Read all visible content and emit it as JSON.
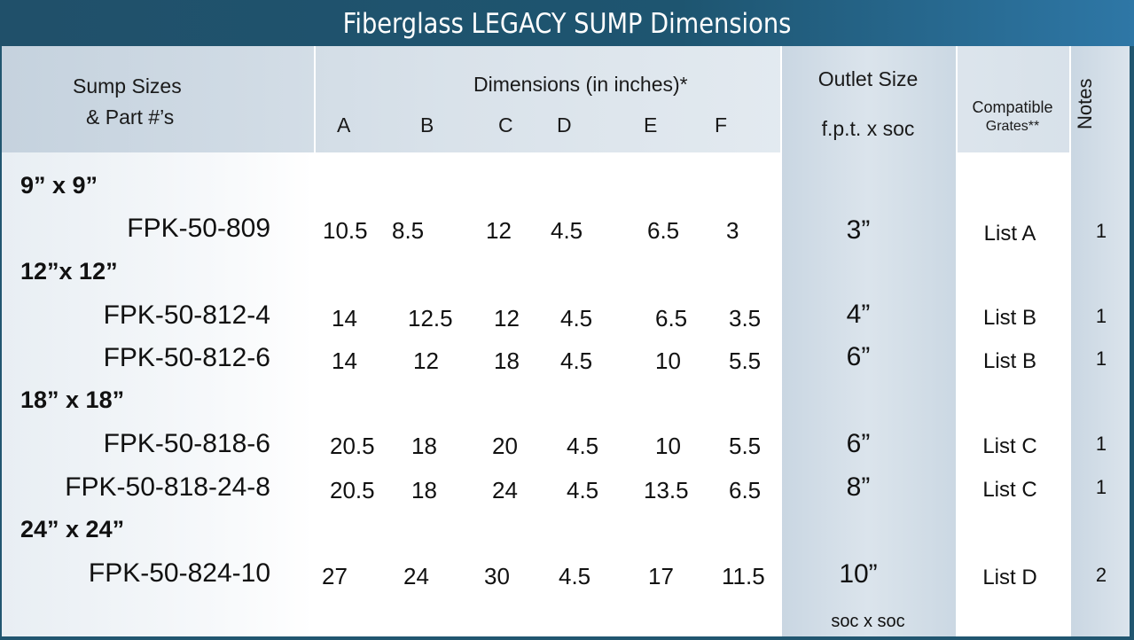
{
  "title": "Fiberglass LEGACY SUMP Dimensions",
  "headers": {
    "sizes_line1": "Sump Sizes",
    "sizes_line2": "& Part #’s",
    "dimensions": "Dimensions (in inches)*",
    "dim_letters": [
      "A",
      "B",
      "C",
      "D",
      "E",
      "F"
    ],
    "outlet_line1": "Outlet Size",
    "outlet_line2": "f.p.t. x soc",
    "grates_line1": "Compatible",
    "grates_line2": "Grates**",
    "notes": "Notes"
  },
  "groups": [
    {
      "label": "9” x 9”"
    },
    {
      "label": "12”x 12”"
    },
    {
      "label": "18” x 18”"
    },
    {
      "label": "24” x 24”"
    }
  ],
  "rows": [
    {
      "part": "FPK-50-809",
      "dims": [
        "10.5",
        "8.5",
        "12",
        "4.5",
        "6.5",
        "3"
      ],
      "outlet": "3”",
      "grate": "List A",
      "note": "1"
    },
    {
      "part": "FPK-50-812-4",
      "dims": [
        "14",
        "12.5",
        "12",
        "4.5",
        "6.5",
        "3.5"
      ],
      "outlet": "4”",
      "grate": "List B",
      "note": "1"
    },
    {
      "part": "FPK-50-812-6",
      "dims": [
        "14",
        "12",
        "18",
        "4.5",
        "10",
        "5.5"
      ],
      "outlet": "6”",
      "grate": "List B",
      "note": "1"
    },
    {
      "part": "FPK-50-818-6",
      "dims": [
        "20.5",
        "18",
        "20",
        "4.5",
        "10",
        "5.5"
      ],
      "outlet": "6”",
      "grate": "List C",
      "note": "1"
    },
    {
      "part": "FPK-50-818-24-8",
      "dims": [
        "20.5",
        "18",
        "24",
        "4.5",
        "13.5",
        "6.5"
      ],
      "outlet": "8”",
      "grate": "List C",
      "note": "1"
    },
    {
      "part": "FPK-50-824-10",
      "dims": [
        "27",
        "24",
        "30",
        "4.5",
        "17",
        "11.5"
      ],
      "outlet": "10”",
      "grate": "List D",
      "note": "2"
    }
  ],
  "footnote_soc": "soc x soc"
}
